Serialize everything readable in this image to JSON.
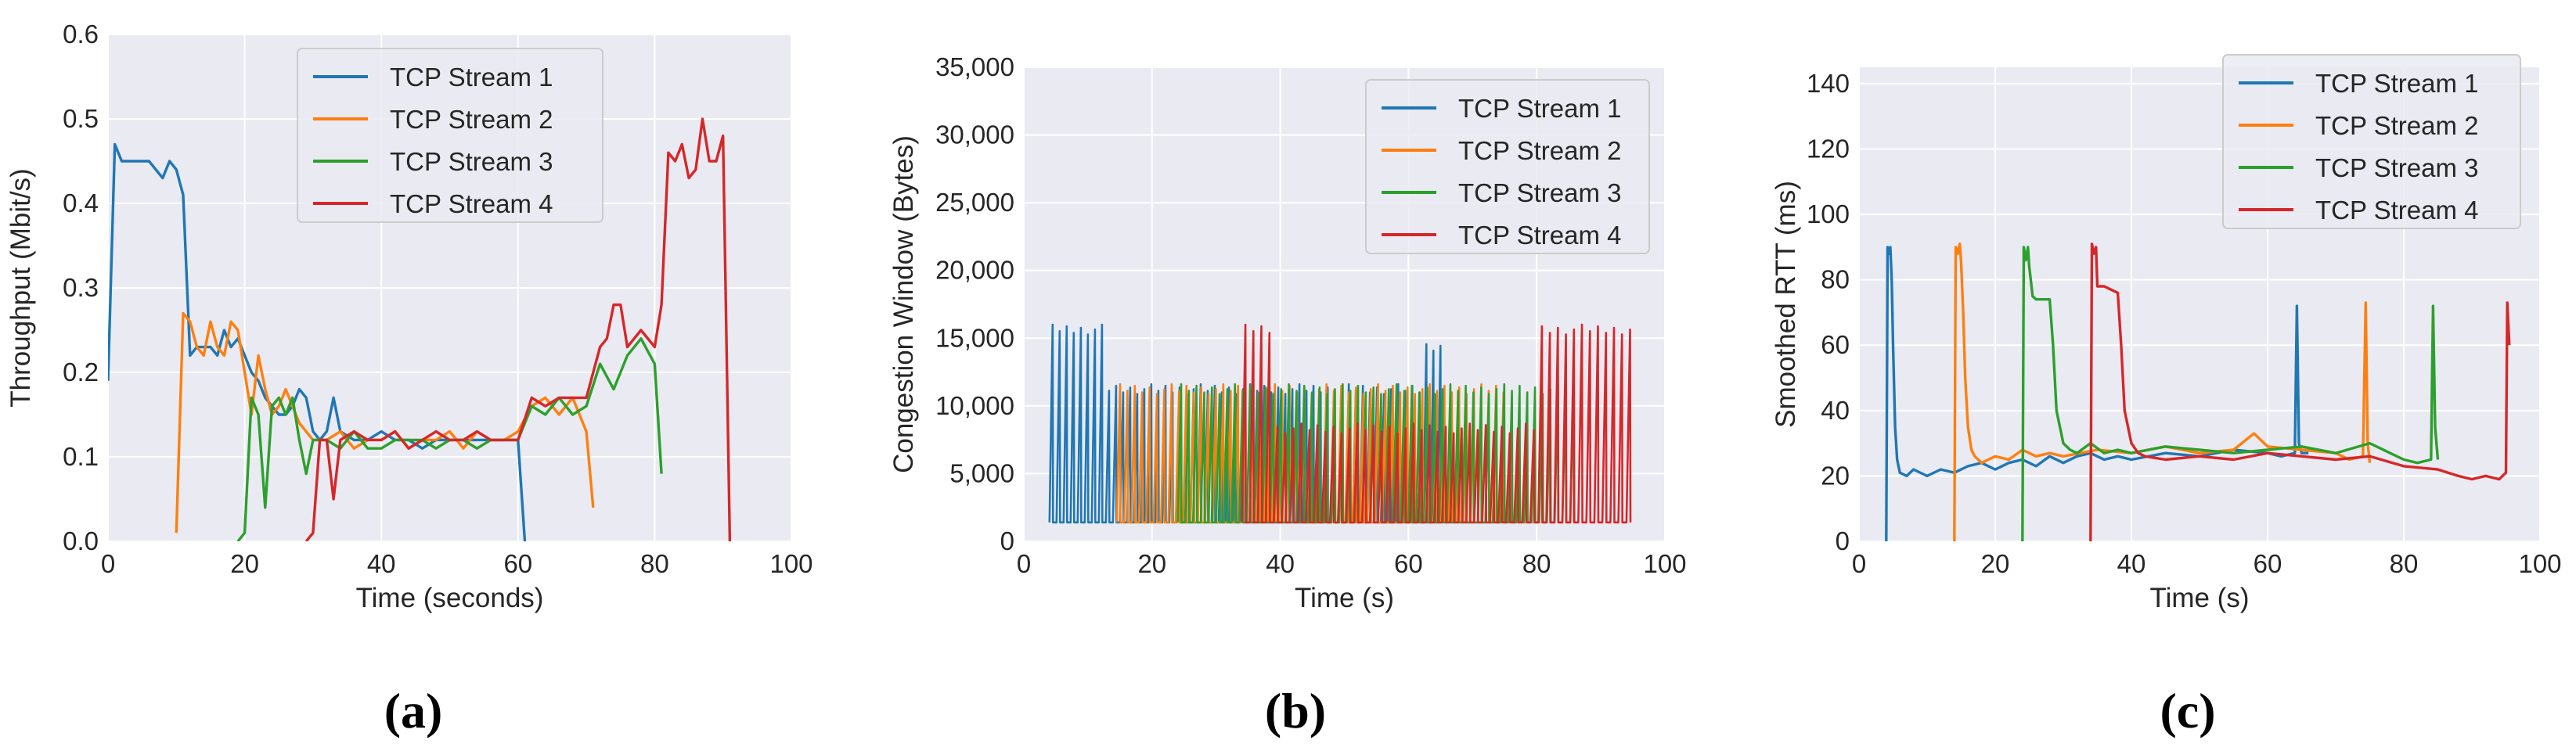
{
  "chart_data": [
    {
      "type": "line",
      "panel_label": "(a)",
      "xlabel": "Time (seconds)",
      "ylabel": "Throughput (Mbit/s)",
      "xlim": [
        0,
        100
      ],
      "ylim": [
        0,
        0.6
      ],
      "xticks": [
        0,
        20,
        40,
        60,
        80,
        100
      ],
      "yticks": [
        0.0,
        0.1,
        0.2,
        0.3,
        0.4,
        0.5,
        0.6
      ],
      "ytick_labels": [
        "0.0",
        "0.1",
        "0.2",
        "0.3",
        "0.4",
        "0.5",
        "0.6"
      ],
      "grid": true,
      "legend": "top-center",
      "series": [
        {
          "name": "TCP Stream 1",
          "color": "#1f77b4",
          "x": [
            0,
            1,
            2,
            4,
            6,
            8,
            9,
            10,
            11,
            12,
            13,
            14,
            15,
            16,
            17,
            18,
            19,
            20,
            21,
            22,
            23,
            24,
            25,
            26,
            27,
            28,
            29,
            30,
            31,
            32,
            33,
            34,
            36,
            38,
            40,
            42,
            44,
            46,
            48,
            50,
            52,
            54,
            56,
            58,
            59,
            60,
            61
          ],
          "y": [
            0.19,
            0.47,
            0.45,
            0.45,
            0.45,
            0.43,
            0.45,
            0.44,
            0.41,
            0.22,
            0.23,
            0.23,
            0.23,
            0.22,
            0.25,
            0.23,
            0.24,
            0.22,
            0.2,
            0.19,
            0.17,
            0.16,
            0.15,
            0.15,
            0.16,
            0.18,
            0.17,
            0.13,
            0.12,
            0.13,
            0.17,
            0.13,
            0.12,
            0.12,
            0.13,
            0.12,
            0.12,
            0.11,
            0.12,
            0.12,
            0.12,
            0.12,
            0.12,
            0.12,
            0.12,
            0.12,
            0.0
          ]
        },
        {
          "name": "TCP Stream 2",
          "color": "#ff7f0e",
          "x": [
            10,
            11,
            12,
            13,
            14,
            15,
            16,
            17,
            18,
            19,
            20,
            21,
            22,
            23,
            24,
            25,
            26,
            27,
            28,
            30,
            32,
            34,
            36,
            38,
            40,
            42,
            44,
            46,
            48,
            50,
            52,
            54,
            56,
            58,
            60,
            62,
            64,
            66,
            68,
            70,
            71
          ],
          "y": [
            0.01,
            0.27,
            0.26,
            0.23,
            0.22,
            0.26,
            0.23,
            0.22,
            0.26,
            0.25,
            0.2,
            0.15,
            0.22,
            0.18,
            0.15,
            0.16,
            0.18,
            0.16,
            0.14,
            0.12,
            0.12,
            0.13,
            0.11,
            0.12,
            0.12,
            0.13,
            0.11,
            0.12,
            0.12,
            0.13,
            0.11,
            0.13,
            0.12,
            0.12,
            0.13,
            0.16,
            0.17,
            0.15,
            0.17,
            0.13,
            0.04
          ]
        },
        {
          "name": "TCP Stream 3",
          "color": "#2ca02c",
          "x": [
            19,
            20,
            21,
            22,
            23,
            24,
            25,
            26,
            27,
            28,
            29,
            30,
            32,
            34,
            36,
            38,
            40,
            42,
            44,
            46,
            48,
            50,
            52,
            54,
            56,
            58,
            60,
            62,
            64,
            66,
            68,
            70,
            72,
            74,
            76,
            78,
            80,
            81
          ],
          "y": [
            0.0,
            0.01,
            0.17,
            0.15,
            0.04,
            0.16,
            0.17,
            0.15,
            0.17,
            0.12,
            0.08,
            0.12,
            0.12,
            0.11,
            0.13,
            0.11,
            0.11,
            0.12,
            0.12,
            0.12,
            0.11,
            0.12,
            0.12,
            0.11,
            0.12,
            0.12,
            0.12,
            0.16,
            0.15,
            0.17,
            0.15,
            0.16,
            0.21,
            0.18,
            0.22,
            0.24,
            0.21,
            0.08
          ]
        },
        {
          "name": "TCP Stream 4",
          "color": "#d62728",
          "x": [
            29,
            30,
            31,
            32,
            33,
            34,
            36,
            38,
            40,
            42,
            44,
            46,
            48,
            50,
            52,
            54,
            56,
            58,
            60,
            62,
            64,
            66,
            68,
            70,
            72,
            73,
            74,
            75,
            76,
            78,
            80,
            81,
            82,
            83,
            84,
            85,
            86,
            87,
            88,
            89,
            90,
            91
          ],
          "y": [
            0.0,
            0.01,
            0.12,
            0.12,
            0.05,
            0.12,
            0.13,
            0.12,
            0.12,
            0.13,
            0.11,
            0.12,
            0.13,
            0.12,
            0.12,
            0.13,
            0.12,
            0.12,
            0.12,
            0.17,
            0.16,
            0.17,
            0.17,
            0.17,
            0.23,
            0.24,
            0.28,
            0.28,
            0.23,
            0.25,
            0.23,
            0.28,
            0.46,
            0.45,
            0.47,
            0.43,
            0.44,
            0.5,
            0.45,
            0.45,
            0.48,
            0.0
          ]
        }
      ]
    },
    {
      "type": "line",
      "panel_label": "(b)",
      "xlabel": "Time (s)",
      "ylabel": "Congestion Window (Bytes)",
      "xlim": [
        0,
        100
      ],
      "ylim": [
        0,
        35000
      ],
      "xticks": [
        0,
        20,
        40,
        60,
        80,
        100
      ],
      "yticks": [
        0,
        5000,
        10000,
        15000,
        20000,
        25000,
        30000,
        35000
      ],
      "ytick_labels": [
        "0",
        "5,000",
        "10,000",
        "15,000",
        "20,000",
        "25,000",
        "30,000",
        "35,000"
      ],
      "grid": true,
      "legend": "top-right",
      "series": [
        {
          "name": "TCP Stream 1",
          "color": "#1f77b4",
          "pattern": "sawtooth",
          "start": 4,
          "end": 65,
          "peak": 16000,
          "low": 1400,
          "peaks_late": 14800,
          "period": 1.1
        },
        {
          "name": "TCP Stream 2",
          "color": "#ff7f0e",
          "pattern": "sawtooth",
          "start": 14.5,
          "end": 75,
          "peak": 11600,
          "low": 1400,
          "period": 1.15
        },
        {
          "name": "TCP Stream 3",
          "color": "#2ca02c",
          "pattern": "sawtooth",
          "start": 24,
          "end": 86,
          "peak": 11600,
          "low": 1400,
          "period": 1.2
        },
        {
          "name": "TCP Stream 4",
          "color": "#d62728",
          "pattern": "sawtooth",
          "start": 34,
          "end": 95,
          "peak": 16000,
          "low": 1400,
          "peaks_mid": 8700,
          "period": 1.25
        }
      ]
    },
    {
      "type": "line",
      "panel_label": "(c)",
      "xlabel": "Time (s)",
      "ylabel": "Smoothed RTT (ms)",
      "xlim": [
        0,
        100
      ],
      "ylim": [
        0,
        145
      ],
      "xticks": [
        0,
        20,
        40,
        60,
        80,
        100
      ],
      "yticks": [
        0,
        20,
        40,
        60,
        80,
        100,
        120,
        140
      ],
      "ytick_labels": [
        "0",
        "20",
        "40",
        "60",
        "80",
        "100",
        "120",
        "140"
      ],
      "grid": true,
      "legend": "top-right",
      "series": [
        {
          "name": "TCP Stream 1",
          "color": "#1f77b4",
          "x": [
            4,
            4.2,
            4.4,
            4.6,
            4.8,
            5.0,
            5.3,
            5.6,
            6,
            7,
            8,
            10,
            12,
            14,
            16,
            18,
            20,
            22,
            24,
            26,
            28,
            30,
            32,
            34,
            36,
            38,
            40,
            45,
            50,
            55,
            60,
            62,
            64,
            64.3,
            64.6,
            65,
            66
          ],
          "y": [
            0,
            90,
            88,
            90,
            80,
            60,
            35,
            25,
            21,
            20,
            22,
            20,
            22,
            21,
            23,
            24,
            22,
            24,
            25,
            23,
            26,
            24,
            26,
            27,
            25,
            26,
            25,
            27,
            26,
            28,
            27,
            26,
            27,
            72,
            30,
            27,
            27
          ]
        },
        {
          "name": "TCP Stream 2",
          "color": "#ff7f0e",
          "x": [
            14,
            14.2,
            14.5,
            14.8,
            15.0,
            15.3,
            15.6,
            16,
            16.5,
            17,
            18,
            20,
            22,
            24,
            26,
            28,
            30,
            35,
            40,
            45,
            50,
            55,
            58,
            60,
            65,
            70,
            72,
            74,
            74.4,
            74.7,
            75
          ],
          "y": [
            0,
            90,
            88,
            91,
            85,
            70,
            50,
            35,
            28,
            26,
            24,
            26,
            25,
            28,
            26,
            27,
            26,
            28,
            27,
            29,
            27,
            28,
            33,
            29,
            28,
            27,
            25,
            26,
            73,
            30,
            24
          ]
        },
        {
          "name": "TCP Stream 3",
          "color": "#2ca02c",
          "x": [
            24,
            24.2,
            24.5,
            24.8,
            25,
            25.5,
            26,
            28,
            28.5,
            29,
            30,
            31,
            32,
            34,
            36,
            38,
            40,
            45,
            50,
            55,
            60,
            65,
            70,
            75,
            80,
            82,
            84,
            84.3,
            84.6,
            85
          ],
          "y": [
            0,
            90,
            86,
            90,
            84,
            75,
            74,
            74,
            60,
            40,
            30,
            28,
            27,
            30,
            27,
            28,
            27,
            29,
            28,
            27,
            28,
            29,
            27,
            30,
            25,
            24,
            25,
            72,
            35,
            25
          ]
        },
        {
          "name": "TCP Stream 4",
          "color": "#d62728",
          "x": [
            34,
            34.2,
            34.5,
            34.8,
            35,
            36,
            37,
            38,
            38.5,
            39,
            40,
            41,
            42,
            45,
            50,
            55,
            60,
            65,
            70,
            75,
            80,
            85,
            88,
            90,
            92,
            94,
            95,
            95.2,
            95.5
          ],
          "y": [
            0,
            91,
            88,
            90,
            78,
            78,
            77,
            76,
            60,
            40,
            30,
            27,
            26,
            25,
            26,
            25,
            27,
            26,
            25,
            26,
            23,
            22,
            20,
            19,
            20,
            19,
            21,
            73,
            60
          ]
        }
      ]
    }
  ]
}
